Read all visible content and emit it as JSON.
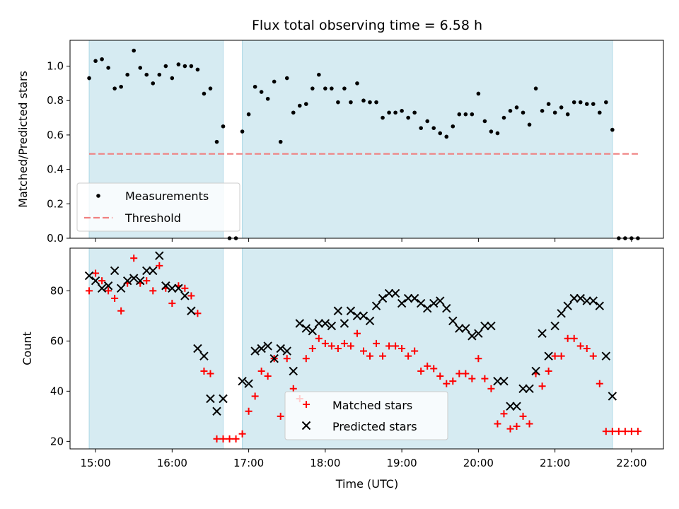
{
  "chart_data": [
    {
      "type": "scatter",
      "title": "Flux total observing time = 6.58 h",
      "xlabel": "",
      "ylabel": "Matched/Predicted stars",
      "xlim": [
        "14:40",
        "22:25"
      ],
      "ylim": [
        0,
        1.15
      ],
      "yticks": [
        "0.0",
        "0.2",
        "0.4",
        "0.6",
        "0.8",
        "1.0"
      ],
      "observing_windows": [
        [
          "14:55",
          "16:40"
        ],
        [
          "16:55",
          "21:45"
        ]
      ],
      "threshold": {
        "name": "Threshold",
        "value": 0.49,
        "x_range": [
          "14:55",
          "22:05"
        ],
        "color": "#f08080"
      },
      "legend": {
        "position": "lower-left",
        "entries": [
          "Measurements",
          "Threshold"
        ]
      },
      "series": [
        {
          "name": "Measurements",
          "color": "#000000",
          "x": [
            "14:55",
            "15:00",
            "15:05",
            "15:10",
            "15:15",
            "15:20",
            "15:25",
            "15:30",
            "15:35",
            "15:40",
            "15:45",
            "15:50",
            "15:55",
            "16:00",
            "16:05",
            "16:10",
            "16:15",
            "16:20",
            "16:25",
            "16:30",
            "16:35",
            "16:40",
            "16:45",
            "16:50",
            "16:55",
            "17:00",
            "17:05",
            "17:10",
            "17:15",
            "17:20",
            "17:25",
            "17:30",
            "17:35",
            "17:40",
            "17:45",
            "17:50",
            "17:55",
            "18:00",
            "18:05",
            "18:10",
            "18:15",
            "18:20",
            "18:25",
            "18:30",
            "18:35",
            "18:40",
            "18:45",
            "18:50",
            "18:55",
            "19:00",
            "19:05",
            "19:10",
            "19:15",
            "19:20",
            "19:25",
            "19:30",
            "19:35",
            "19:40",
            "19:45",
            "19:50",
            "19:55",
            "20:00",
            "20:05",
            "20:10",
            "20:15",
            "20:20",
            "20:25",
            "20:30",
            "20:35",
            "20:40",
            "20:45",
            "20:50",
            "20:55",
            "21:00",
            "21:05",
            "21:10",
            "21:15",
            "21:20",
            "21:25",
            "21:30",
            "21:35",
            "21:40",
            "21:45",
            "21:50",
            "21:55",
            "22:00",
            "22:05"
          ],
          "y": [
            0.93,
            1.03,
            1.04,
            0.99,
            0.87,
            0.88,
            0.95,
            1.09,
            0.99,
            0.95,
            0.9,
            0.95,
            1.0,
            0.93,
            1.01,
            1.0,
            1.0,
            0.98,
            0.84,
            0.87,
            0.56,
            0.65,
            0.0,
            0.0,
            0.62,
            0.72,
            0.88,
            0.85,
            0.81,
            0.91,
            0.56,
            0.93,
            0.73,
            0.77,
            0.78,
            0.87,
            0.95,
            0.87,
            0.87,
            0.79,
            0.87,
            0.79,
            0.9,
            0.8,
            0.79,
            0.79,
            0.7,
            0.73,
            0.73,
            0.74,
            0.7,
            0.73,
            0.64,
            0.68,
            0.64,
            0.61,
            0.59,
            0.65,
            0.72,
            0.72,
            0.72,
            0.84,
            0.68,
            0.62,
            0.61,
            0.7,
            0.74,
            0.76,
            0.73,
            0.66,
            0.87,
            0.74,
            0.78,
            0.73,
            0.76,
            0.72,
            0.79,
            0.79,
            0.78,
            0.78,
            0.73,
            0.79,
            0.63,
            0.0,
            0.0,
            0.0,
            0.0
          ]
        }
      ]
    },
    {
      "type": "scatter",
      "title": "",
      "xlabel": "Time (UTC)",
      "ylabel": "Count",
      "xlim": [
        "14:40",
        "22:25"
      ],
      "ylim": [
        17,
        97
      ],
      "xticks": [
        "15:00",
        "16:00",
        "17:00",
        "18:00",
        "19:00",
        "20:00",
        "21:00",
        "22:00"
      ],
      "yticks": [
        "20",
        "40",
        "60",
        "80"
      ],
      "observing_windows": [
        [
          "14:55",
          "16:40"
        ],
        [
          "16:55",
          "21:45"
        ]
      ],
      "legend": {
        "position": "lower-center",
        "entries": [
          "Matched stars",
          "Predicted stars"
        ]
      },
      "series": [
        {
          "name": "Matched stars",
          "marker": "plus",
          "color": "#ff0000",
          "x": [
            "14:55",
            "15:00",
            "15:05",
            "15:10",
            "15:15",
            "15:20",
            "15:25",
            "15:30",
            "15:35",
            "15:40",
            "15:45",
            "15:50",
            "15:55",
            "16:00",
            "16:05",
            "16:10",
            "16:15",
            "16:20",
            "16:25",
            "16:30",
            "16:35",
            "16:40",
            "16:45",
            "16:50",
            "16:55",
            "17:00",
            "17:05",
            "17:10",
            "17:15",
            "17:20",
            "17:25",
            "17:30",
            "17:35",
            "17:40",
            "17:45",
            "17:50",
            "17:55",
            "18:00",
            "18:05",
            "18:10",
            "18:15",
            "18:20",
            "18:25",
            "18:30",
            "18:35",
            "18:40",
            "18:45",
            "18:50",
            "18:55",
            "19:00",
            "19:05",
            "19:10",
            "19:15",
            "19:20",
            "19:25",
            "19:30",
            "19:35",
            "19:40",
            "19:45",
            "19:50",
            "19:55",
            "20:00",
            "20:05",
            "20:10",
            "20:15",
            "20:20",
            "20:25",
            "20:30",
            "20:35",
            "20:40",
            "20:45",
            "20:50",
            "20:55",
            "21:00",
            "21:05",
            "21:10",
            "21:15",
            "21:20",
            "21:25",
            "21:30",
            "21:35",
            "21:40",
            "21:45",
            "21:50",
            "21:55",
            "22:00",
            "22:05"
          ],
          "y": [
            80,
            87,
            84,
            80,
            77,
            72,
            83,
            93,
            83,
            84,
            80,
            90,
            81,
            75,
            82,
            81,
            78,
            71,
            48,
            47,
            21,
            21,
            21,
            21,
            23,
            32,
            38,
            48,
            46,
            53,
            30,
            53,
            41,
            37,
            53,
            57,
            61,
            59,
            58,
            57,
            59,
            58,
            63,
            56,
            54,
            59,
            54,
            58,
            58,
            57,
            54,
            56,
            48,
            50,
            49,
            46,
            43,
            44,
            47,
            47,
            45,
            53,
            45,
            41,
            27,
            31,
            25,
            26,
            30,
            27,
            47,
            42,
            48,
            54,
            54,
            61,
            61,
            58,
            57,
            54,
            43,
            24,
            24,
            24,
            24,
            24,
            24
          ]
        },
        {
          "name": "Predicted stars",
          "marker": "x",
          "color": "#000000",
          "x": [
            "14:55",
            "15:00",
            "15:05",
            "15:10",
            "15:15",
            "15:20",
            "15:25",
            "15:30",
            "15:35",
            "15:40",
            "15:45",
            "15:50",
            "15:55",
            "16:00",
            "16:05",
            "16:10",
            "16:15",
            "16:20",
            "16:25",
            "16:30",
            "16:35",
            "16:40",
            "16:55",
            "17:00",
            "17:05",
            "17:10",
            "17:15",
            "17:20",
            "17:25",
            "17:30",
            "17:35",
            "17:40",
            "17:45",
            "17:50",
            "17:55",
            "18:00",
            "18:05",
            "18:10",
            "18:15",
            "18:20",
            "18:25",
            "18:30",
            "18:35",
            "18:40",
            "18:45",
            "18:50",
            "18:55",
            "19:00",
            "19:05",
            "19:10",
            "19:15",
            "19:20",
            "19:25",
            "19:30",
            "19:35",
            "19:40",
            "19:45",
            "19:50",
            "19:55",
            "20:00",
            "20:05",
            "20:10",
            "20:15",
            "20:20",
            "20:25",
            "20:30",
            "20:35",
            "20:40",
            "20:45",
            "20:50",
            "20:55",
            "21:00",
            "21:05",
            "21:10",
            "21:15",
            "21:20",
            "21:25",
            "21:30",
            "21:35",
            "21:40",
            "21:45"
          ],
          "y": [
            86,
            84,
            81,
            82,
            88,
            81,
            84,
            85,
            84,
            88,
            88,
            94,
            82,
            81,
            81,
            78,
            72,
            57,
            54,
            37,
            32,
            37,
            44,
            43,
            56,
            57,
            58,
            53,
            57,
            56,
            48,
            67,
            65,
            64,
            67,
            67,
            66,
            72,
            67,
            72,
            70,
            70,
            68,
            74,
            77,
            79,
            79,
            75,
            77,
            77,
            75,
            73,
            75,
            76,
            73,
            68,
            65,
            65,
            62,
            63,
            66,
            66,
            44,
            44,
            34,
            34,
            41,
            41,
            48,
            63,
            54,
            66,
            71,
            74,
            77,
            77,
            76,
            76,
            74,
            54,
            38
          ]
        }
      ]
    }
  ]
}
